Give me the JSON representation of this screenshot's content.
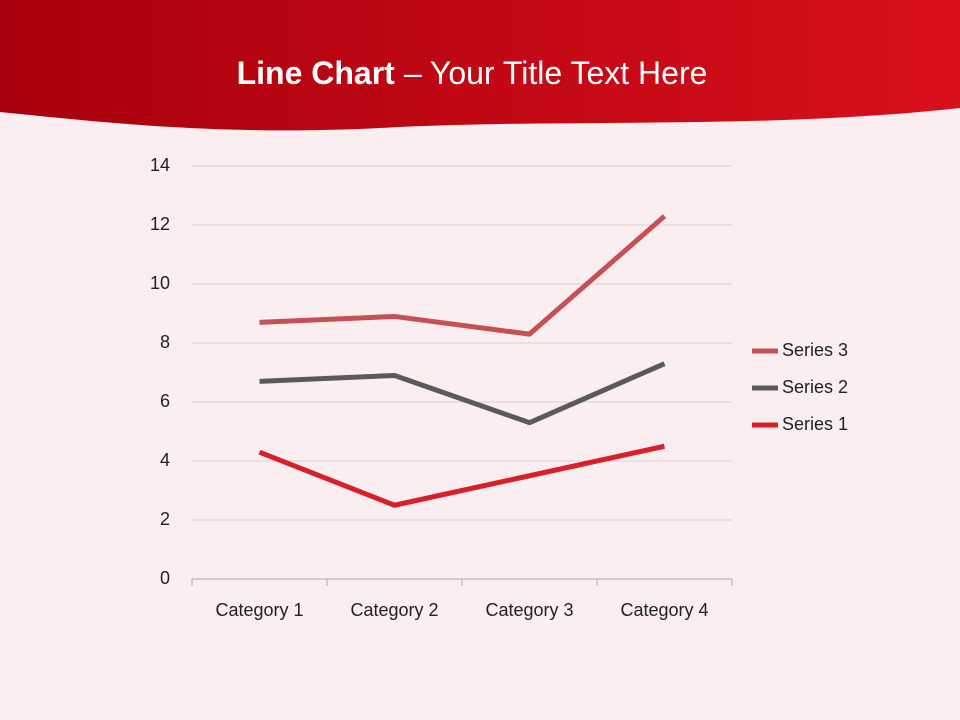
{
  "chart_data": {
    "type": "line",
    "stacked": true,
    "title": "Line Chart",
    "subtitle": "– Your Title Text Here",
    "categories": [
      "Category 1",
      "Category 2",
      "Category 3",
      "Category 4"
    ],
    "series": [
      {
        "name": "Series 1",
        "color": "#d8202a",
        "values": [
          4.3,
          2.5,
          3.5,
          4.5
        ]
      },
      {
        "name": "Series 2",
        "color": "#5a5a5a",
        "values": [
          2.4,
          4.4,
          1.8,
          2.8
        ]
      },
      {
        "name": "Series 3",
        "color": "#c65052",
        "values": [
          2,
          2,
          3,
          5
        ]
      }
    ],
    "ylim": [
      0,
      14
    ],
    "yticks": [
      0,
      2,
      4,
      6,
      8,
      10,
      12,
      14
    ],
    "grid": true,
    "legend": "right"
  }
}
